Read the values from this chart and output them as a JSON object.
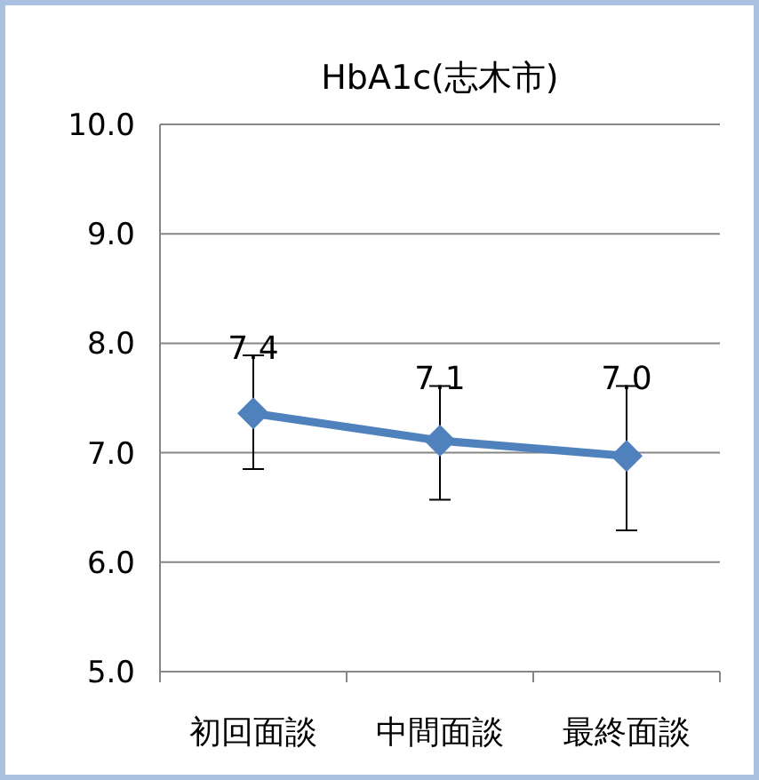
{
  "chart_data": {
    "type": "line",
    "title": "HbA1c(志木市)",
    "categories": [
      "初回面談",
      "中間面談",
      "最終面談"
    ],
    "series": [
      {
        "color": "#4f81bd",
        "values": [
          7.36,
          7.11,
          6.97
        ],
        "value_labels": [
          "7.4",
          "7.1",
          "7.0"
        ],
        "errors": [
          [
            6.85,
            7.89
          ],
          [
            6.57,
            7.61
          ],
          [
            6.29,
            7.61
          ]
        ]
      }
    ],
    "ylim": [
      5.0,
      10.0
    ],
    "yticks": [
      {
        "value": 5,
        "label": "5.0"
      },
      {
        "value": 6,
        "label": "6.0"
      },
      {
        "value": 7,
        "label": "7.0"
      },
      {
        "value": 8,
        "label": "8.0"
      },
      {
        "value": 9,
        "label": "9.0"
      },
      {
        "value": 10,
        "label": "10.0"
      }
    ],
    "grid": "y",
    "marker": "diamond",
    "line_style": "solid"
  }
}
